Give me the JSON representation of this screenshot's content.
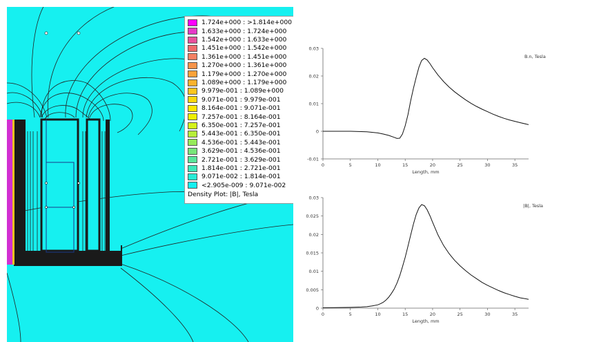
{
  "legend": {
    "title": "Density Plot: |B|, Tesla",
    "entries": [
      {
        "label": "1.724e+000 : >1.814e+000",
        "color": "#ff00ff"
      },
      {
        "label": "1.633e+000 : 1.724e+000",
        "color": "#e639c8"
      },
      {
        "label": "1.542e+000 : 1.633e+000",
        "color": "#e8509c"
      },
      {
        "label": "1.451e+000 : 1.542e+000",
        "color": "#f06a6a"
      },
      {
        "label": "1.361e+000 : 1.451e+000",
        "color": "#f58062"
      },
      {
        "label": "1.270e+000 : 1.361e+000",
        "color": "#f8944a"
      },
      {
        "label": "1.179e+000 : 1.270e+000",
        "color": "#fba23a"
      },
      {
        "label": "1.089e+000 : 1.179e+000",
        "color": "#fcb22c"
      },
      {
        "label": "9.979e-001 : 1.089e+000",
        "color": "#fdc61e"
      },
      {
        "label": "9.071e-001 : 9.979e-001",
        "color": "#fed70e"
      },
      {
        "label": "8.164e-001 : 9.071e-001",
        "color": "#ffe600"
      },
      {
        "label": "7.257e-001 : 8.164e-001",
        "color": "#eef000"
      },
      {
        "label": "6.350e-001 : 7.257e-001",
        "color": "#d4f21a"
      },
      {
        "label": "5.443e-001 : 6.350e-001",
        "color": "#b6ee3a"
      },
      {
        "label": "4.536e-001 : 5.443e-001",
        "color": "#96ea5a"
      },
      {
        "label": "3.629e-001 : 4.536e-001",
        "color": "#78e67a"
      },
      {
        "label": "2.721e-001 : 3.629e-001",
        "color": "#5ae69a"
      },
      {
        "label": "1.814e-001 : 2.721e-001",
        "color": "#3ee8ba"
      },
      {
        "label": "9.071e-002 : 1.814e-001",
        "color": "#26ecd6"
      },
      {
        "label": "<2.905e-009 : 9.071e-002",
        "color": "#16f0f0"
      }
    ]
  },
  "colors": {
    "field_background": "#16f0f0",
    "core": "#1a1a1a",
    "flux_lines": "#222222"
  },
  "chart_data": [
    {
      "type": "line",
      "series": [
        {
          "name": "B.n, Tesla",
          "x": [
            0,
            5,
            8,
            10,
            11,
            12,
            13,
            13.5,
            14,
            14.5,
            15,
            15.5,
            16,
            16.5,
            17,
            17.5,
            18,
            18.5,
            19,
            19.5,
            20,
            21,
            22,
            23,
            24,
            25,
            26,
            27,
            28,
            29,
            30,
            31,
            32,
            33,
            34,
            35,
            36,
            37.5
          ],
          "values": [
            0,
            0,
            -0.0002,
            -0.0006,
            -0.001,
            -0.0015,
            -0.0022,
            -0.0026,
            -0.0025,
            -0.001,
            0.002,
            0.006,
            0.011,
            0.0155,
            0.0195,
            0.0232,
            0.0256,
            0.0264,
            0.0258,
            0.0245,
            0.023,
            0.0203,
            0.018,
            0.016,
            0.0143,
            0.0128,
            0.0114,
            0.0101,
            0.009,
            0.008,
            0.0071,
            0.0062,
            0.0054,
            0.0047,
            0.0041,
            0.0036,
            0.0031,
            0.0024
          ]
        }
      ],
      "xlabel": "Length, mm",
      "xlim": [
        0,
        37.5
      ],
      "ylim": [
        -0.01,
        0.03
      ],
      "xticks": [
        "0",
        "5",
        "10",
        "15",
        "20",
        "25",
        "30",
        "35"
      ],
      "yticks": [
        "0.03",
        "0.02",
        "0.01",
        "0",
        "-0.01"
      ]
    },
    {
      "type": "line",
      "series": [
        {
          "name": "|B|, Tesla",
          "x": [
            0,
            5,
            7,
            8,
            9,
            10,
            10.5,
            11,
            11.5,
            12,
            12.5,
            13,
            13.5,
            14,
            14.5,
            15,
            15.5,
            16,
            16.5,
            17,
            17.5,
            18,
            18.5,
            19,
            19.5,
            20,
            21,
            22,
            23,
            24,
            25,
            26,
            27,
            28,
            29,
            30,
            31,
            32,
            33,
            34,
            35,
            36,
            37.5
          ],
          "values": [
            0.0001,
            0.0002,
            0.0003,
            0.0004,
            0.0006,
            0.0009,
            0.0012,
            0.0016,
            0.0022,
            0.003,
            0.004,
            0.0052,
            0.0068,
            0.0088,
            0.0112,
            0.0138,
            0.0168,
            0.0198,
            0.0228,
            0.0254,
            0.0272,
            0.0281,
            0.0278,
            0.0267,
            0.0251,
            0.0233,
            0.0198,
            0.017,
            0.0148,
            0.013,
            0.0115,
            0.0102,
            0.009,
            0.008,
            0.007,
            0.0062,
            0.0055,
            0.0048,
            0.0042,
            0.0037,
            0.0032,
            0.0028,
            0.0024
          ]
        }
      ],
      "xlabel": "Length, mm",
      "xlim": [
        0,
        37.5
      ],
      "ylim": [
        0,
        0.03
      ],
      "xticks": [
        "0",
        "5",
        "10",
        "15",
        "20",
        "25",
        "30",
        "35"
      ],
      "yticks": [
        "0.03",
        "0.025",
        "0.02",
        "0.015",
        "0.01",
        "0.005",
        "0"
      ]
    }
  ]
}
